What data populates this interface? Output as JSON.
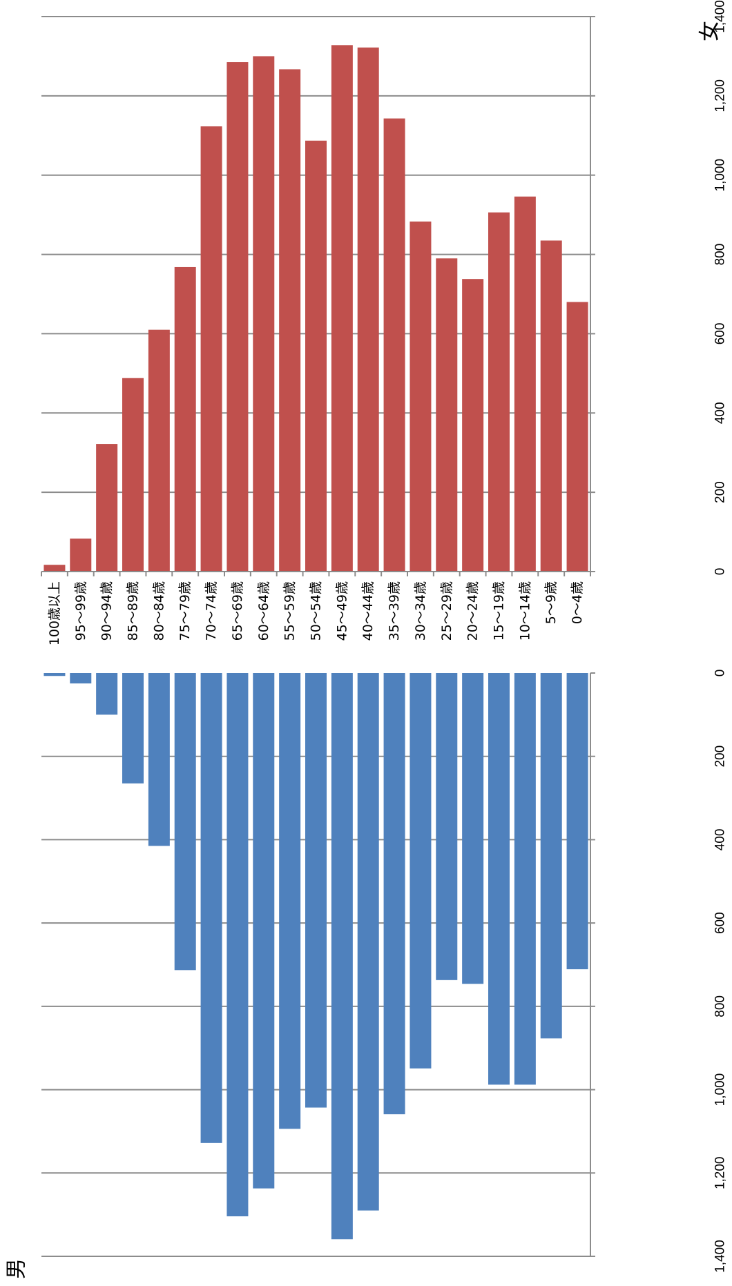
{
  "chart_data": {
    "type": "bar",
    "orientation": "population-pyramid",
    "categories": [
      "100歳以上",
      "95～99歳",
      "90～94歳",
      "85～89歳",
      "80～84歳",
      "75～79歳",
      "70～74歳",
      "65～69歳",
      "60～64歳",
      "55～59歳",
      "50～54歳",
      "45～49歳",
      "40～44歳",
      "35～39歳",
      "30～34歳",
      "25～29歳",
      "20～24歳",
      "15～19歳",
      "10～14歳",
      "5～9歳",
      "0～4歳"
    ],
    "series": [
      {
        "name": "女",
        "color": "#c0504d",
        "values": [
          17,
          83,
          322,
          488,
          610,
          768,
          1123,
          1285,
          1300,
          1267,
          1087,
          1328,
          1322,
          1143,
          883,
          790,
          738,
          906,
          946,
          835,
          680
        ]
      },
      {
        "name": "男",
        "color": "#4f81bd",
        "values": [
          7,
          25,
          100,
          265,
          415,
          713,
          1128,
          1304,
          1237,
          1094,
          1043,
          1359,
          1290,
          1059,
          949,
          737,
          746,
          988,
          988,
          877,
          711
        ]
      }
    ],
    "value_axis": {
      "min": 0,
      "max": 1400,
      "ticks": [
        "0",
        "200",
        "400",
        "600",
        "800",
        "1,000",
        "1,200",
        "1,400"
      ]
    },
    "grid": true,
    "legend": "none"
  }
}
